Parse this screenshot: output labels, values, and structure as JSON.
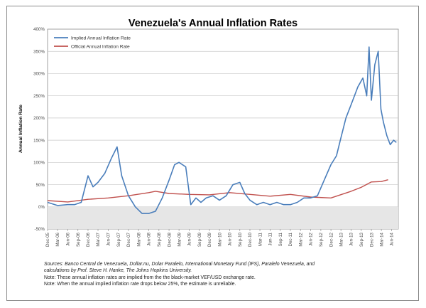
{
  "chart_data": {
    "type": "line",
    "title": "Venezuela's Annual Inflation Rates",
    "ylabel": "Annual Inflation Rate",
    "xlabel": "",
    "ylim": [
      -50,
      400
    ],
    "y_unit": "%",
    "grid": true,
    "legend_placement": "top-left",
    "y_ticks": [
      "-50%",
      "0%",
      "50%",
      "100%",
      "150%",
      "200%",
      "250%",
      "300%",
      "350%",
      "400%"
    ],
    "x_ticks": [
      "Dec-05",
      "Mar-06",
      "Jun-06",
      "Sep-06",
      "Dec-06",
      "Mar-07",
      "Jun-07",
      "Sep-07",
      "Dec-07",
      "Mar-08",
      "Jun-08",
      "Sep-08",
      "Dec-08",
      "Mar-09",
      "Jun-09",
      "Sep-09",
      "Dec-09",
      "Mar-10",
      "Jun-10",
      "Sep-10",
      "Dec-10",
      "Mar-11",
      "Jun-11",
      "Sep-11",
      "Dec-11",
      "Mar-12",
      "Jun-12",
      "Sep-12",
      "Dec-12",
      "Mar-13",
      "Jun-13",
      "Sep-13",
      "Dec-13",
      "Mar-14",
      "Jun-14"
    ],
    "series": [
      {
        "name": "Implied Annual Inflation Rate",
        "color": "#4a7ebb",
        "x": [
          "2005-12-01",
          "2006-03-01",
          "2006-06-01",
          "2006-08-01",
          "2006-10-01",
          "2006-12-01",
          "2007-01-15",
          "2007-03-01",
          "2007-05-01",
          "2007-07-01",
          "2007-08-20",
          "2007-10-01",
          "2007-12-01",
          "2008-02-01",
          "2008-04-01",
          "2008-06-01",
          "2008-08-01",
          "2008-10-01",
          "2008-12-01",
          "2009-01-20",
          "2009-03-01",
          "2009-05-01",
          "2009-06-15",
          "2009-08-01",
          "2009-09-15",
          "2009-11-01",
          "2010-01-01",
          "2010-03-01",
          "2010-05-01",
          "2010-07-01",
          "2010-09-01",
          "2010-10-15",
          "2010-12-01",
          "2011-02-01",
          "2011-04-01",
          "2011-06-01",
          "2011-08-01",
          "2011-10-01",
          "2011-12-01",
          "2012-02-01",
          "2012-04-01",
          "2012-06-01",
          "2012-08-01",
          "2012-10-01",
          "2012-12-01",
          "2013-01-20",
          "2013-03-01",
          "2013-04-15",
          "2013-06-01",
          "2013-08-01",
          "2013-09-15",
          "2013-10-20",
          "2013-11-10",
          "2013-12-01",
          "2014-01-01",
          "2014-02-01",
          "2014-02-25",
          "2014-03-20",
          "2014-04-20",
          "2014-05-20",
          "2014-06-20",
          "2014-07-15"
        ],
        "values": [
          10,
          3,
          5,
          5,
          10,
          70,
          45,
          55,
          75,
          110,
          135,
          70,
          25,
          0,
          -15,
          -15,
          -10,
          20,
          60,
          95,
          100,
          90,
          5,
          20,
          10,
          20,
          25,
          15,
          25,
          50,
          55,
          30,
          15,
          5,
          10,
          5,
          10,
          5,
          5,
          10,
          20,
          20,
          25,
          60,
          95,
          115,
          155,
          200,
          230,
          270,
          290,
          250,
          360,
          240,
          320,
          350,
          220,
          190,
          160,
          140,
          150,
          145
        ]
      },
      {
        "name": "Official Annual Inflation Rate",
        "color": "#c0504d",
        "x": [
          "2005-12-01",
          "2006-06-01",
          "2006-12-01",
          "2007-06-01",
          "2007-12-01",
          "2008-06-01",
          "2008-08-01",
          "2008-12-01",
          "2009-06-01",
          "2009-12-01",
          "2010-06-01",
          "2010-12-01",
          "2011-06-01",
          "2011-12-01",
          "2012-06-01",
          "2012-12-01",
          "2013-06-01",
          "2013-09-01",
          "2013-12-01",
          "2014-03-01",
          "2014-05-01"
        ],
        "values": [
          14,
          11,
          17,
          20,
          25,
          32,
          35,
          30,
          28,
          27,
          32,
          28,
          24,
          28,
          22,
          20,
          35,
          44,
          56,
          57,
          61
        ]
      }
    ]
  },
  "notes": {
    "sources": "Sources: Banco Central de Venezuela, Dollar.nu, Dolar Paralelo, International Monetary Fund (IFS), Paralelo Venezuela, and",
    "sources_cont": "calculations by Prof. Steve H. Hanke, The Johns Hopkins University.",
    "note1": "Note: These annual inflation rates are implied from the the black-market VEF/USD exchange rate.",
    "note2": "Note: When the annual implied inflation rate drops below 25%, the estimate is unreliable."
  }
}
